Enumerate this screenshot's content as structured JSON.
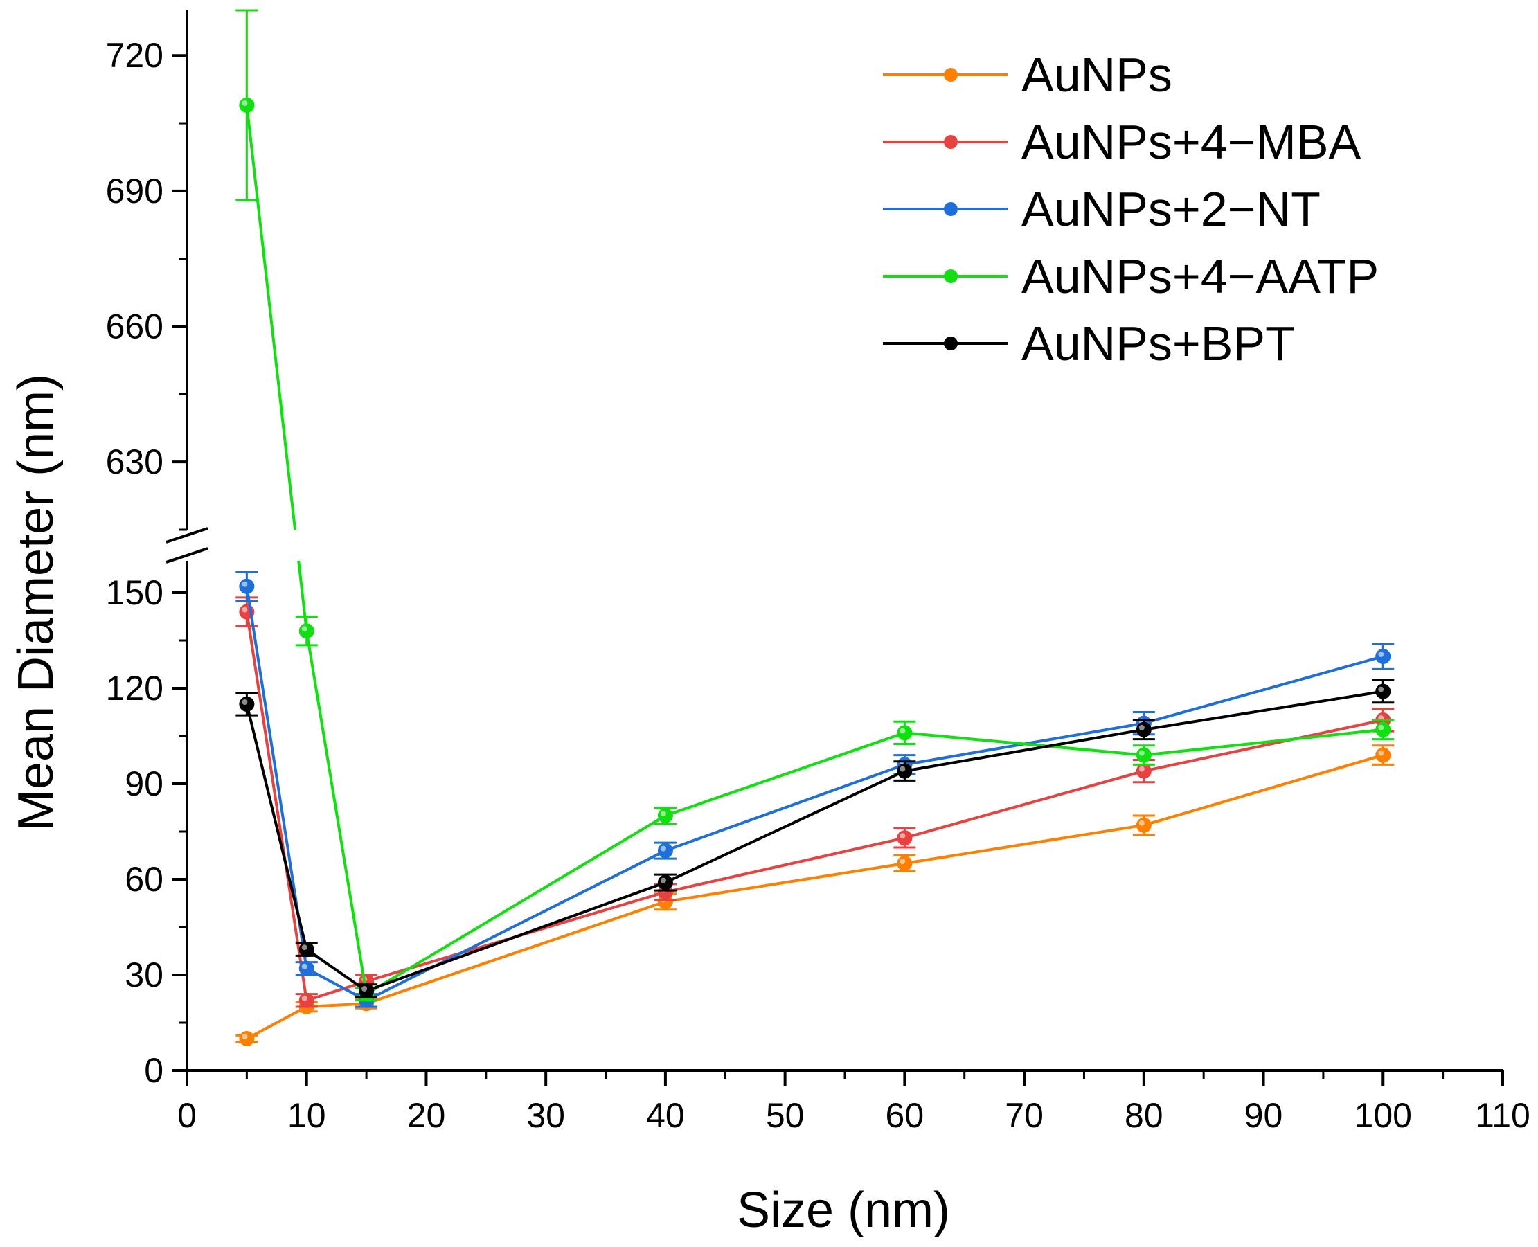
{
  "chart_data": {
    "type": "line",
    "title": "",
    "xlabel": "Size (nm)",
    "ylabel": "Mean Diameter (nm)",
    "xlim": [
      0,
      110
    ],
    "x_ticks": [
      0,
      10,
      20,
      30,
      40,
      50,
      60,
      70,
      80,
      90,
      100,
      110
    ],
    "y_break": {
      "lower_range": [
        0,
        160
      ],
      "upper_range": [
        615,
        730
      ],
      "lower_ticks": [
        0,
        30,
        60,
        90,
        120,
        150
      ],
      "upper_ticks": [
        630,
        660,
        690,
        720
      ]
    },
    "legend_position": "top-right",
    "x": [
      5,
      10,
      15,
      40,
      60,
      80,
      100
    ],
    "series": [
      {
        "name": "AuNPs",
        "color": "#FF8000",
        "values": [
          10,
          20,
          21,
          53,
          65,
          77,
          99
        ],
        "errors": [
          1,
          1.5,
          1.5,
          2.5,
          2.5,
          3,
          3
        ]
      },
      {
        "name": "AuNPs+4−MBA",
        "color": "#E8413F",
        "values": [
          144,
          22,
          28,
          56,
          73,
          94,
          110
        ],
        "errors": [
          4.5,
          2,
          2,
          2.5,
          3,
          3.5,
          3.5
        ]
      },
      {
        "name": "AuNPs+2−NT",
        "color": "#1F6FDB",
        "values": [
          152,
          32,
          22,
          69,
          96,
          109,
          130
        ],
        "errors": [
          4.5,
          2,
          2,
          2.5,
          3,
          3.5,
          4
        ]
      },
      {
        "name": "AuNPs+4−AATP",
        "color": "#10E010",
        "values": [
          709,
          138,
          24,
          80,
          106,
          99,
          107
        ],
        "errors": [
          21,
          4.5,
          2,
          2.5,
          3.5,
          3,
          3
        ]
      },
      {
        "name": "AuNPs+BPT",
        "color": "#000000",
        "values": [
          115,
          38,
          25,
          59,
          94,
          107,
          119
        ],
        "errors": [
          3.5,
          2,
          2,
          2.5,
          3,
          3,
          3.5
        ]
      }
    ]
  }
}
